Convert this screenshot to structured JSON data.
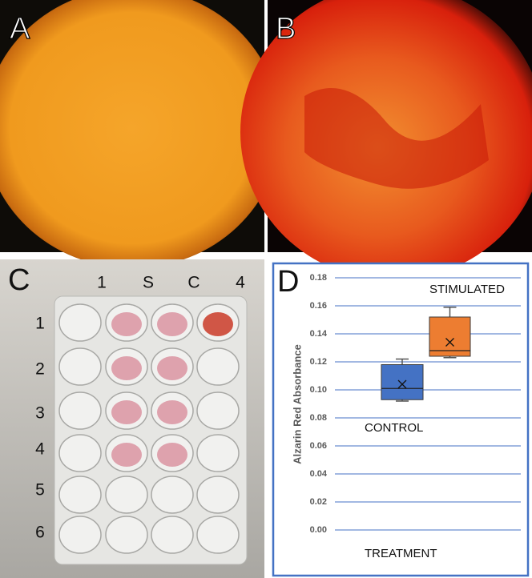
{
  "panel_labels": [
    "A",
    "B",
    "C",
    "D"
  ],
  "plate": {
    "columns": [
      "1",
      "S",
      "C",
      "4"
    ],
    "rows": [
      "1",
      "2",
      "3",
      "4",
      "5",
      "6"
    ]
  },
  "chart_data": {
    "type": "box",
    "ylabel": "Alzarin Red Absorbance",
    "xlabel": "TREATMENT",
    "ylim": [
      0,
      0.18
    ],
    "yticks": [
      {
        "value": 0,
        "label": "0.00"
      },
      0.02,
      0.04,
      0.06,
      0.08,
      {
        "value": 0.1,
        "label": "0.10"
      },
      0.12,
      0.14,
      0.16,
      0.18
    ],
    "grid": true,
    "series": [
      {
        "name": "CONTROL",
        "color": "#4472c4",
        "min": 0.092,
        "q1": 0.093,
        "median": 0.101,
        "q3": 0.118,
        "max": 0.122,
        "mean": 0.104
      },
      {
        "name": "STIMULATED",
        "color": "#ed7d31",
        "min": 0.123,
        "q1": 0.124,
        "median": 0.128,
        "q3": 0.152,
        "max": 0.159,
        "mean": 0.134
      }
    ]
  }
}
